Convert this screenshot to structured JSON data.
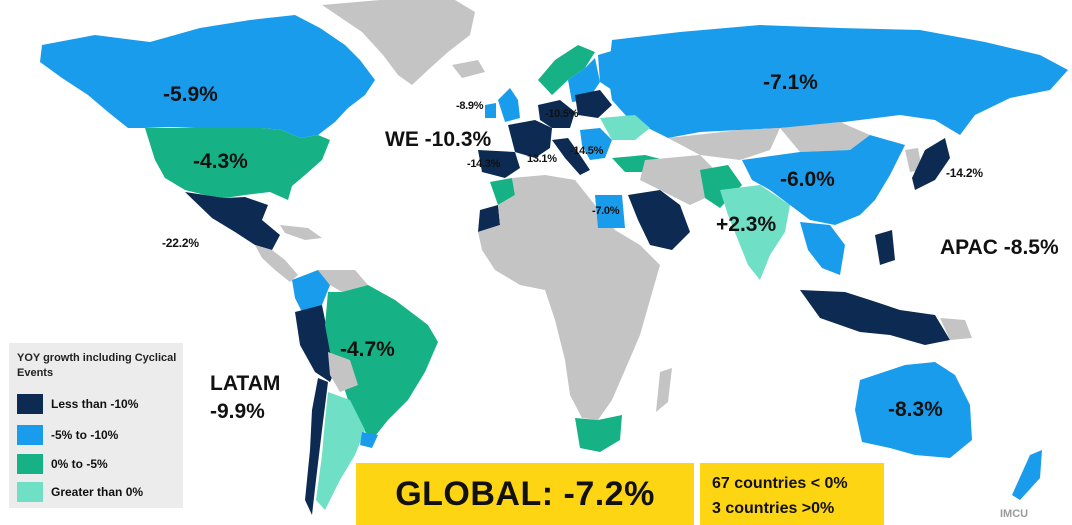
{
  "colors": {
    "less_than_minus_10": "#0d2b52",
    "minus5_to_minus10": "#1a9cec",
    "zero_to_minus5": "#16b184",
    "greater_than_zero": "#6fe0c6",
    "no_data": "#c4c4c4",
    "highlight_box": "#fdd512"
  },
  "regions": {
    "we": "WE -10.3%",
    "apac": "APAC -8.5%",
    "latam_line1": "LATAM",
    "latam_line2": "-9.9%"
  },
  "country_labels": {
    "canada": "-5.9%",
    "usa": "-4.3%",
    "mexico": "-22.2%",
    "brazil": "-4.7%",
    "russia": "-7.1%",
    "china": "-6.0%",
    "japan": "-14.2%",
    "india": "+2.3%",
    "australia": "-8.3%",
    "egypt": "-7.0%",
    "uk": "-8.9%",
    "germany": "-10.5%",
    "spain": "-14.3%",
    "italy": "13.1%",
    "greece": "-14.5%"
  },
  "legend": {
    "title": "YOY growth including Cyclical Events",
    "items": [
      {
        "label": "Less than -10%",
        "color_key": "less_than_minus_10"
      },
      {
        "label": "-5% to -10%",
        "color_key": "minus5_to_minus10"
      },
      {
        "label": "0% to -5%",
        "color_key": "zero_to_minus5"
      },
      {
        "label": "Greater than 0%",
        "color_key": "greater_than_zero"
      }
    ]
  },
  "summary": {
    "global": "GLOBAL: -7.2%",
    "countries_negative": "67 countries < 0%",
    "countries_positive": "3 countries >0%"
  },
  "watermark": "IMCU"
}
